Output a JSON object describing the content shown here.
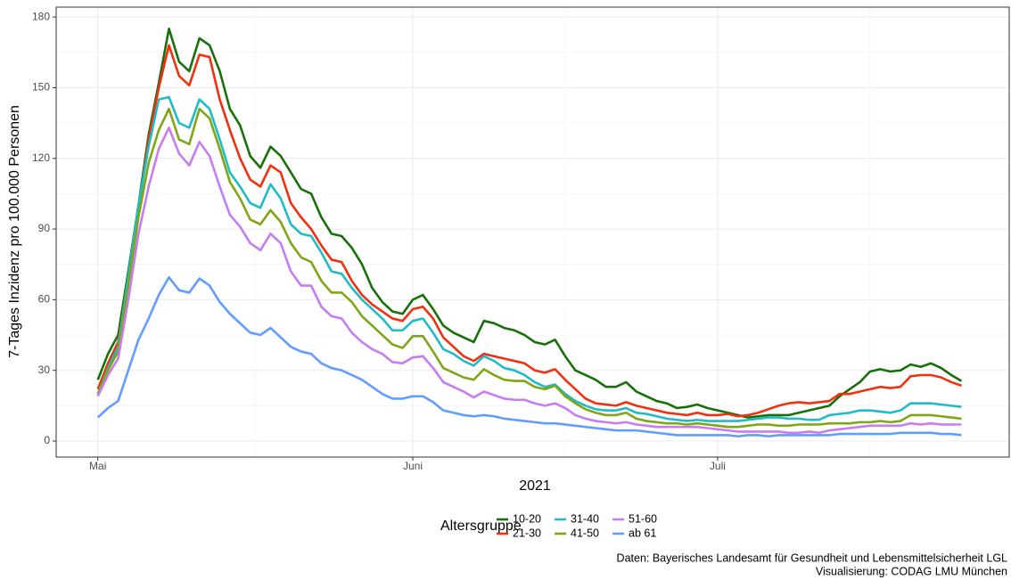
{
  "chart_data": {
    "type": "line",
    "ylabel": "7-Tages Inzidenz pro 100.000 Personen",
    "xlabel": "2021",
    "legend_title": "Altersgruppe",
    "caption": [
      "Daten: Bayerisches Landesamt für Gesundheit und Lebensmittelsicherheit LGL",
      "Visualisierung: CODAG LMU München"
    ],
    "x": [
      0,
      1,
      2,
      3,
      4,
      5,
      6,
      7,
      8,
      9,
      10,
      11,
      12,
      13,
      14,
      15,
      16,
      17,
      18,
      19,
      20,
      21,
      22,
      23,
      24,
      25,
      26,
      27,
      28,
      29,
      30,
      31,
      32,
      33,
      34,
      35,
      36,
      37,
      38,
      39,
      40,
      41,
      42,
      43,
      44,
      45,
      46,
      47,
      48,
      49,
      50,
      51,
      52,
      53,
      54,
      55,
      56,
      57,
      58,
      59,
      60,
      61,
      62,
      63,
      64,
      65,
      66,
      67,
      68,
      69,
      70,
      71,
      72,
      73,
      74,
      75,
      76,
      77,
      78,
      79,
      80,
      81,
      82,
      83,
      84,
      85
    ],
    "xlim": [
      -4.1,
      89.7
    ],
    "xticks": [
      {
        "value": 0,
        "label": "Mai"
      },
      {
        "value": 31,
        "label": "Juni"
      },
      {
        "value": 61,
        "label": "Juli"
      }
    ],
    "ylim": [
      -6.8,
      184.2
    ],
    "yticks": [
      0,
      30,
      60,
      90,
      120,
      150,
      180
    ],
    "grid": true,
    "legend": "bottom",
    "series": [
      {
        "name": "10-20",
        "color": "#17700a",
        "values": [
          26,
          37,
          45,
          72,
          100,
          130,
          152,
          175,
          161,
          157,
          171,
          168,
          157,
          141,
          134,
          121,
          116,
          125,
          121,
          114,
          107,
          105,
          95,
          88,
          87,
          82,
          75,
          65,
          59,
          55,
          54,
          60,
          62,
          56,
          49,
          46,
          44,
          42,
          51,
          50,
          48,
          47,
          45,
          42,
          41,
          43,
          36,
          30,
          28,
          26,
          23,
          23,
          25,
          21,
          19,
          17,
          16,
          14,
          14.5,
          15.5,
          14,
          13,
          12,
          11,
          10,
          10.5,
          11,
          11,
          11,
          12,
          13,
          14,
          15,
          19,
          22,
          25,
          29.5,
          30.5,
          29.5,
          30,
          32.5,
          31.5,
          33,
          31,
          28,
          25.5
        ]
      },
      {
        "name": "21-30",
        "color": "#f2300f",
        "values": [
          22,
          33,
          42,
          68,
          98,
          128,
          150,
          168,
          155,
          151,
          164,
          163,
          145,
          132,
          120,
          111,
          108,
          117,
          114,
          101,
          95,
          90,
          83,
          77,
          76,
          68,
          62,
          58,
          55,
          52,
          51,
          56,
          57,
          52,
          44,
          40,
          36,
          34,
          37,
          36,
          35,
          34,
          33,
          30,
          29,
          30.5,
          26,
          22,
          18,
          16,
          15.5,
          15,
          16.5,
          15,
          14,
          13,
          12,
          11.5,
          11,
          12,
          11,
          11,
          11.5,
          10.5,
          11,
          12,
          13.5,
          15,
          16,
          16.5,
          16,
          16.5,
          17,
          20,
          20,
          21,
          22,
          23,
          22.5,
          23,
          27.5,
          28,
          28,
          27,
          25,
          23.5
        ]
      },
      {
        "name": "31-40",
        "color": "#1fbcc8",
        "values": [
          20,
          31,
          40,
          70,
          100,
          125,
          145,
          146,
          135,
          133,
          145,
          141,
          128,
          114,
          108,
          101,
          99,
          109,
          103,
          92,
          88,
          87,
          80,
          72,
          71,
          65,
          60,
          56,
          52,
          47,
          47,
          51,
          52,
          46,
          39,
          37,
          34,
          32,
          36,
          34,
          31,
          30,
          28,
          25,
          23,
          24,
          20,
          17,
          15,
          13.5,
          13,
          13,
          14,
          12,
          11.5,
          10.5,
          9.5,
          9,
          8.5,
          9,
          8.5,
          8.5,
          8.5,
          8.5,
          9,
          9.5,
          10,
          10,
          9.5,
          9.5,
          9,
          9,
          11,
          11.5,
          12,
          13,
          13,
          12.5,
          12,
          13,
          16,
          16,
          16,
          15.5,
          15,
          14.5
        ]
      },
      {
        "name": "41-50",
        "color": "#7fa614",
        "values": [
          20,
          30,
          38,
          66,
          95,
          118,
          132,
          141,
          128,
          126,
          141,
          137,
          124,
          110,
          103,
          94,
          92,
          98,
          93,
          84,
          78,
          76,
          68,
          63,
          63,
          59,
          53,
          49,
          45,
          41,
          39.5,
          44.5,
          44.5,
          38,
          31,
          29,
          27,
          26,
          30.5,
          28,
          26,
          25.5,
          25.5,
          23,
          22,
          23.5,
          19,
          16,
          13.5,
          12,
          11,
          11,
          12,
          9.5,
          8.5,
          8,
          7.5,
          7.5,
          7,
          7.5,
          7,
          6.5,
          6,
          6,
          6.5,
          7,
          7,
          6.5,
          6.5,
          7,
          7,
          7,
          7.5,
          7.5,
          7.5,
          8,
          8,
          8.5,
          8,
          8.5,
          11,
          11,
          11,
          10.5,
          10,
          9.5
        ]
      },
      {
        "name": "51-60",
        "color": "#c77cf2",
        "values": [
          19,
          28,
          35,
          60,
          88,
          108,
          124,
          133,
          122,
          117,
          127,
          121,
          108,
          96,
          91,
          84,
          81,
          88,
          84,
          72,
          66,
          66,
          57,
          53,
          52,
          46,
          42,
          39,
          37,
          33.5,
          33,
          35.5,
          36,
          31,
          25,
          23,
          21,
          18.5,
          21,
          19.5,
          18,
          17.5,
          17.5,
          16,
          15,
          16,
          14,
          11,
          9.5,
          8.5,
          8,
          7.5,
          8,
          7,
          6.5,
          6,
          6,
          6,
          6,
          6,
          5.5,
          5,
          4.5,
          4,
          4,
          4,
          4,
          4,
          3.5,
          3.5,
          4,
          3.5,
          4.5,
          5,
          5.5,
          6,
          6.5,
          6.5,
          6.5,
          6.5,
          7.5,
          7,
          7.5,
          7,
          7,
          7
        ]
      },
      {
        "name": "ab 61",
        "color": "#619cff",
        "values": [
          10,
          14,
          17,
          30,
          43,
          52,
          62,
          69.5,
          64,
          63,
          69,
          66,
          59,
          54,
          50,
          46,
          45,
          48,
          44,
          40,
          38,
          37,
          33,
          31,
          30,
          28,
          26,
          23,
          20,
          18,
          18,
          19,
          19,
          16.5,
          13,
          12,
          11,
          10.5,
          11,
          10.5,
          9.5,
          9,
          8.5,
          8,
          7.5,
          7.5,
          7,
          6.5,
          6,
          5.5,
          5,
          4.5,
          4.5,
          4.5,
          4,
          3.5,
          3,
          2.5,
          2.5,
          2.5,
          2.5,
          2.5,
          2.5,
          2,
          2.5,
          2.5,
          2,
          2.5,
          2.5,
          2.5,
          2.5,
          2.5,
          2.5,
          3,
          3,
          3,
          3,
          3,
          3,
          3.5,
          3.5,
          3.5,
          3.5,
          3,
          3,
          2.5
        ]
      }
    ]
  }
}
